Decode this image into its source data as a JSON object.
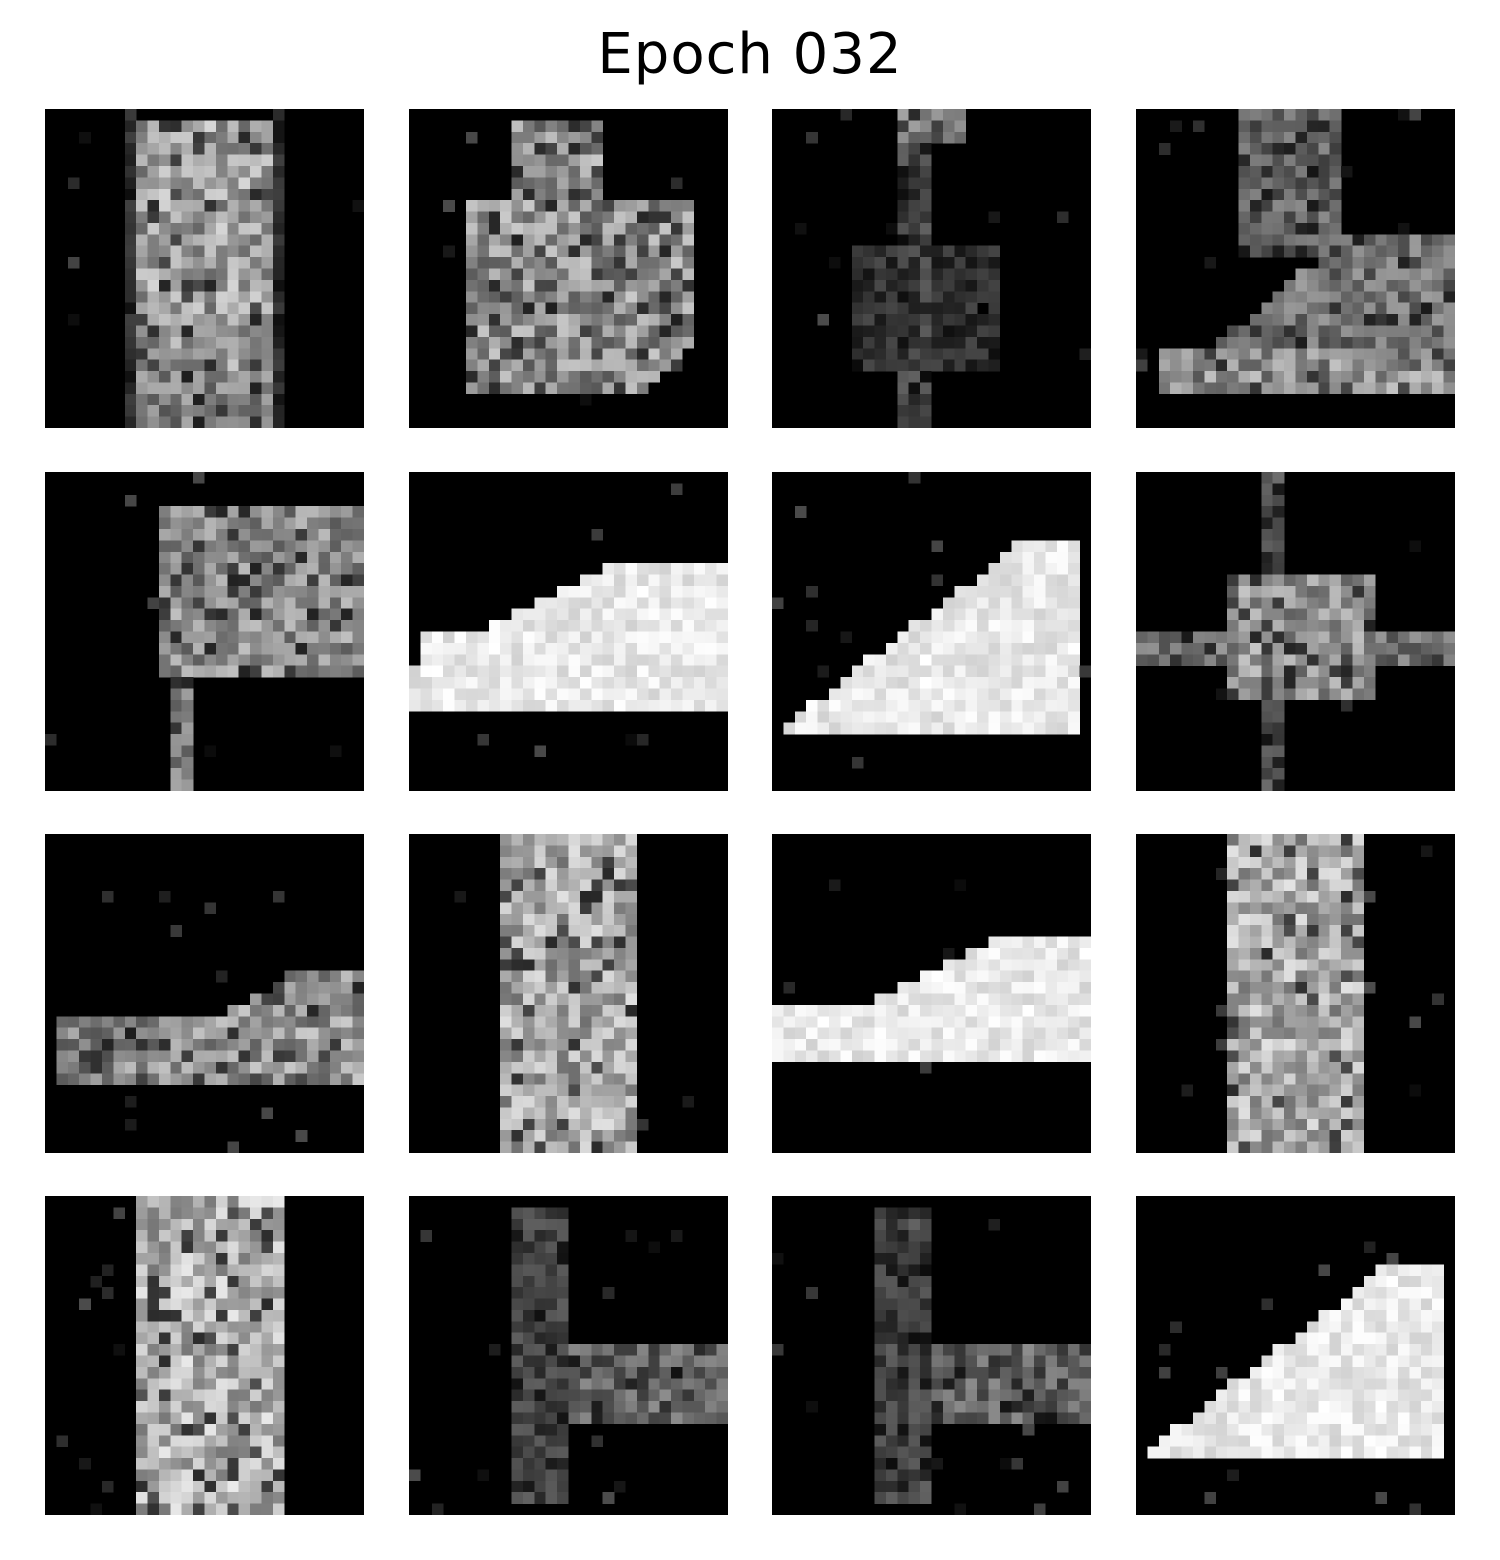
{
  "figure": {
    "title": "Epoch 032"
  },
  "samples": [
    {
      "shape": "tall-block",
      "brightness": 0.72
    },
    {
      "shape": "bag",
      "brightness": 0.62
    },
    {
      "shape": "figure-sparse",
      "brightness": 0.35
    },
    {
      "shape": "sneaker-low",
      "brightness": 0.6
    },
    {
      "shape": "blob-arm",
      "brightness": 0.7
    },
    {
      "shape": "sneaker-flat",
      "brightness": 0.98
    },
    {
      "shape": "sneaker-high",
      "brightness": 0.92
    },
    {
      "shape": "figure-top",
      "brightness": 0.75
    },
    {
      "shape": "sneaker-mid",
      "brightness": 0.7
    },
    {
      "shape": "trouser-strip",
      "brightness": 0.78
    },
    {
      "shape": "sneaker-flat2",
      "brightness": 0.97
    },
    {
      "shape": "trouser-strip",
      "brightness": 0.8
    },
    {
      "shape": "trouser-wide",
      "brightness": 0.85
    },
    {
      "shape": "figure-low",
      "brightness": 0.45
    },
    {
      "shape": "figure-low",
      "brightness": 0.45
    },
    {
      "shape": "sneaker-high",
      "brightness": 0.94
    }
  ],
  "colors": {
    "background": "#ffffff",
    "tile_background": "#000000",
    "title_text": "#000000"
  }
}
